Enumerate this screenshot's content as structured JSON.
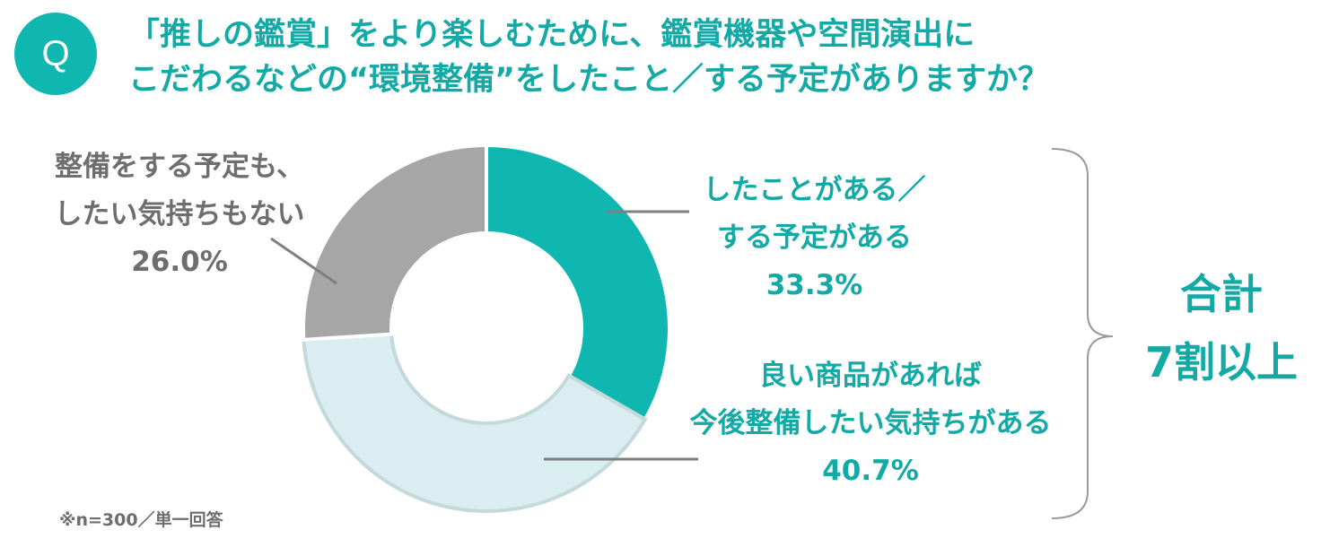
{
  "question": {
    "badge": "Q",
    "line1": "「推しの鑑賞」をより楽しむために、鑑賞機器や空間演出に",
    "line2": "こだわるなどの“環境整備”をしたこと／する予定がありますか？"
  },
  "chart_data": {
    "type": "pie",
    "variant": "donut",
    "slices": [
      {
        "line1": "したことがある／",
        "line2": "する予定がある",
        "value_label": "33.3%",
        "value": 33.3,
        "color": "#10b7b0"
      },
      {
        "line1": "良い商品があれば",
        "line2": "今後整備したい気持ちがある",
        "value_label": "40.7%",
        "value": 40.7,
        "color": "#daedf0"
      },
      {
        "line1": "整備をする予定も、",
        "line2": "したい気持ちもない",
        "value_label": "26.0%",
        "value": 26.0,
        "color": "#a6a6a6"
      }
    ]
  },
  "total": {
    "line1": "合計",
    "line2": "7割以上"
  },
  "note": "※n=300／単一回答"
}
